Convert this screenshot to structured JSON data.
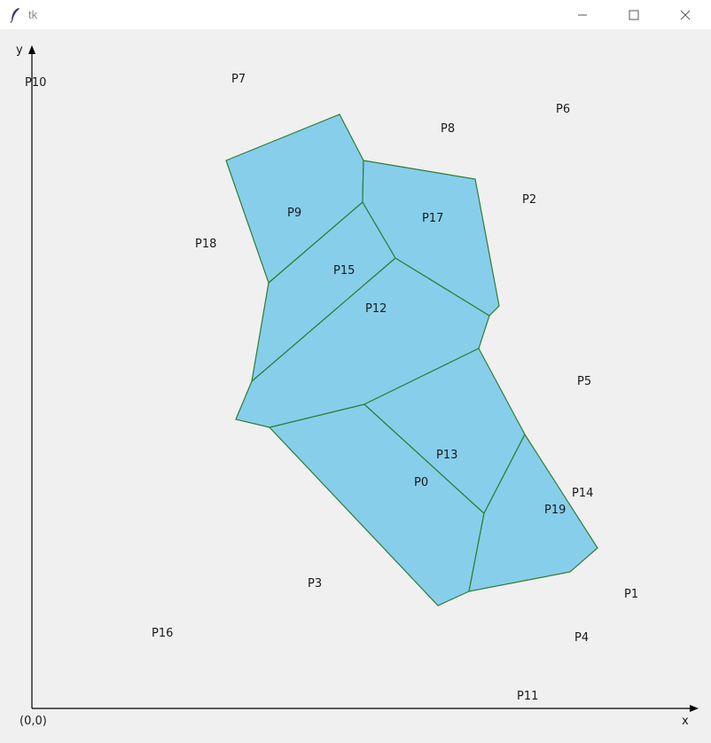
{
  "window": {
    "title": "tk",
    "icons": {
      "app": "feather-icon",
      "minimize": "minimize-icon",
      "maximize": "maximize-icon",
      "close": "close-icon"
    }
  },
  "axes": {
    "x_label": "x",
    "y_label": "y",
    "origin_label": "(0,0)"
  },
  "colors": {
    "cell_fill": "#87ceeb",
    "cell_stroke": "#2e7d32",
    "axis": "#000000",
    "background": "#f0f0f0"
  },
  "points": [
    {
      "label": "P0"
    },
    {
      "label": "P1"
    },
    {
      "label": "P2"
    },
    {
      "label": "P3"
    },
    {
      "label": "P4"
    },
    {
      "label": "P5"
    },
    {
      "label": "P6"
    },
    {
      "label": "P7"
    },
    {
      "label": "P8"
    },
    {
      "label": "P9"
    },
    {
      "label": "P10"
    },
    {
      "label": "P11"
    },
    {
      "label": "P12"
    },
    {
      "label": "P13"
    },
    {
      "label": "P14"
    },
    {
      "label": "P15"
    },
    {
      "label": "P16"
    },
    {
      "label": "P17"
    },
    {
      "label": "P18"
    },
    {
      "label": "P19"
    }
  ],
  "cells": [
    "P0",
    "P9",
    "P12",
    "P13",
    "P15",
    "P17",
    "P19"
  ]
}
